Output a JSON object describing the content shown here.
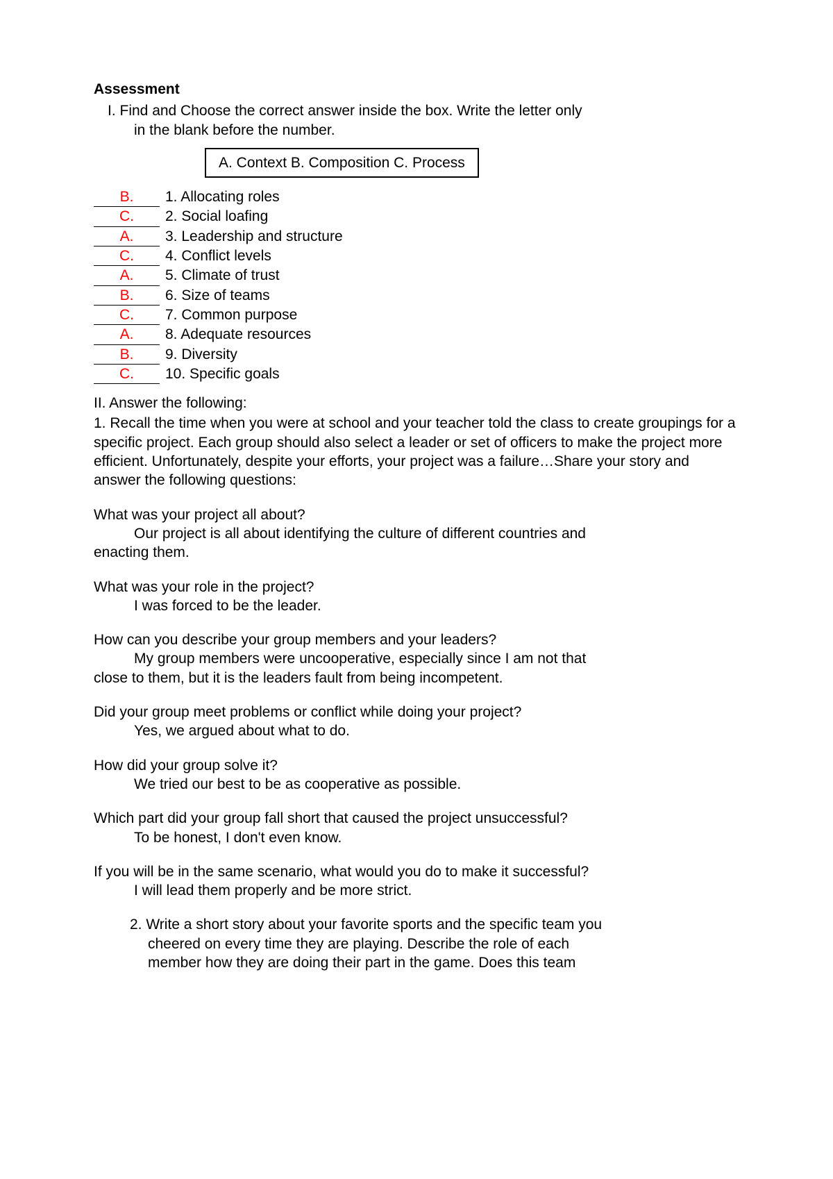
{
  "title": "Assessment",
  "section1": {
    "instruction_line1": "I. Find and Choose the correct answer inside the box. Write the letter only",
    "instruction_line2": "in the blank before the number.",
    "choices_box": "A. Context B. Composition C. Process",
    "items": [
      {
        "answer": "B.",
        "text": "1. Allocating roles"
      },
      {
        "answer": "C.",
        "text": "2. Social loafing"
      },
      {
        "answer": "A.",
        "text": "3. Leadership and structure"
      },
      {
        "answer": "C.",
        "text": "4. Conflict levels"
      },
      {
        "answer": "A.",
        "text": "5. Climate of trust"
      },
      {
        "answer": "B.",
        "text": "6. Size of teams"
      },
      {
        "answer": "C.",
        "text": "7. Common purpose"
      },
      {
        "answer": "A.",
        "text": "8. Adequate resources"
      },
      {
        "answer": "B.",
        "text": "9. Diversity"
      },
      {
        "answer": "C.",
        "text": "10. Specific goals"
      }
    ]
  },
  "section2": {
    "heading": "II. Answer the following:",
    "prompt": "1. Recall the time when you were at school and your teacher told the class to create groupings for a specific project. Each group should also select a leader or set of officers to make the project more efficient. Unfortunately, despite your efforts, your project was a failure…Share your story and answer the following questions:",
    "qa": [
      {
        "q": "What was your project all about?",
        "a_indent": "Our project is all about identifying the culture of different countries and",
        "a_cont": "enacting them."
      },
      {
        "q": "What was your role in the project?",
        "a_indent": "I was forced to be the leader.",
        "a_cont": ""
      },
      {
        "q": "How can you describe your group members and your leaders?",
        "a_indent": "My group members were uncooperative, especially since I am not that",
        "a_cont": "close to them, but it is the leaders fault from being incompetent."
      },
      {
        "q": "Did your group meet problems or conflict while doing your project?",
        "a_indent": "Yes, we argued about what to do.",
        "a_cont": ""
      },
      {
        "q": "How did your group solve it?",
        "a_indent": "We tried our best to be as cooperative as possible.",
        "a_cont": ""
      },
      {
        "q": "Which part did your group fall short that caused the project unsuccessful?",
        "a_indent": "To be honest, I don't even know.",
        "a_cont": ""
      },
      {
        "q": "If you will be in the same scenario, what would you do to make it successful?",
        "a_indent": "I will lead them properly and be more strict.",
        "a_cont": ""
      }
    ],
    "q2_line1": "2. Write a short story about your favorite sports and the specific team you",
    "q2_line2": "cheered on every time they are playing. Describe the role of each",
    "q2_line3": "member how they are doing their part in the game. Does this team"
  },
  "colors": {
    "answer_color": "#ff0000",
    "text_color": "#000000",
    "background_color": "#ffffff"
  }
}
